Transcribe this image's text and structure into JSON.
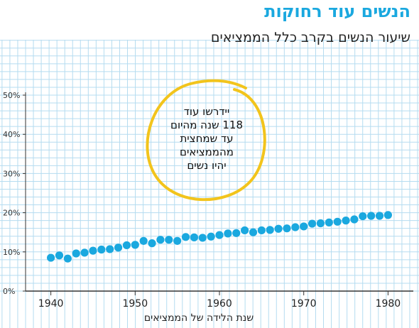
{
  "title": "הנשים עוד רחוקות",
  "subtitle": "שיעור הנשים בקרב כלל הממציאים",
  "annotation_lines": [
    "יידרשו עוד",
    "118 שנה מהיום",
    "עד שמחצית",
    "מהממציאים",
    "יהיו נשים"
  ],
  "colors": {
    "title": "#1aa8df",
    "points": "#1aa8df",
    "grid": "#b5dcf0",
    "circle": "#f2c41c",
    "text": "#222222"
  },
  "chart_data": {
    "type": "scatter",
    "title": "שיעור הנשים בקרב כלל הממציאים",
    "xlabel": "שנת הלידה של הממציאים",
    "ylabel": "",
    "xlim": [
      1937,
      1983
    ],
    "ylim": [
      0,
      50
    ],
    "x_ticks": [
      1940,
      1950,
      1960,
      1970,
      1980
    ],
    "x_tick_labels": [
      "1940",
      "1950",
      "1960",
      "1970",
      "1980"
    ],
    "y_ticks": [
      0,
      10,
      20,
      30,
      40,
      50
    ],
    "y_tick_labels": [
      "0%",
      "10%",
      "20%",
      "30%",
      "40%",
      "50%"
    ],
    "grid": true,
    "series": [
      {
        "x": [
          1940,
          1941,
          1942,
          1943,
          1944,
          1945,
          1946,
          1947,
          1948,
          1949,
          1950,
          1951,
          1952,
          1953,
          1954,
          1955,
          1956,
          1957,
          1958,
          1959,
          1960,
          1961,
          1962,
          1963,
          1964,
          1965,
          1966,
          1967,
          1968,
          1969,
          1970,
          1971,
          1972,
          1973,
          1974,
          1975,
          1976,
          1977,
          1978,
          1979,
          1980
        ],
        "values": [
          8.5,
          9.1,
          8.3,
          9.6,
          9.8,
          10.3,
          10.6,
          10.7,
          11.1,
          11.7,
          11.8,
          12.8,
          12.2,
          13.1,
          13.1,
          12.8,
          13.8,
          13.7,
          13.6,
          13.9,
          14.3,
          14.7,
          14.8,
          15.5,
          15.0,
          15.5,
          15.6,
          15.9,
          16.0,
          16.3,
          16.5,
          17.2,
          17.3,
          17.5,
          17.7,
          18.0,
          18.3,
          19.1,
          19.2,
          19.2,
          19.4
        ]
      }
    ]
  }
}
